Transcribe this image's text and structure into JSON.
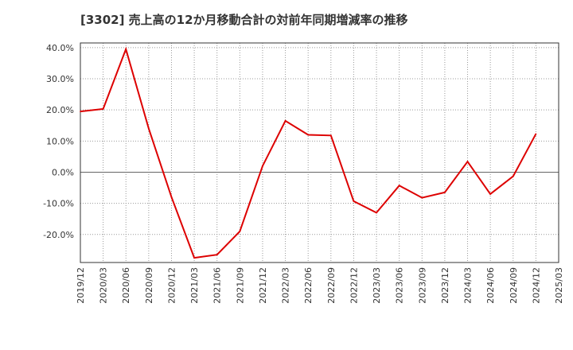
{
  "chart_data": {
    "type": "line",
    "title": "[3302]  売上高の12か月移動合計の対前年同期増減率の推移",
    "xlabel": "",
    "ylabel": "",
    "ylim": [
      -29,
      41.5
    ],
    "yticks": [
      40,
      30,
      20,
      10,
      0,
      -10,
      -20
    ],
    "ytick_labels": [
      "40.0%",
      "30.0%",
      "20.0%",
      "10.0%",
      "0.0%",
      "-10.0%",
      "-20.0%"
    ],
    "x_ticks": [
      "2019/12",
      "2020/03",
      "2020/06",
      "2020/09",
      "2020/12",
      "2021/03",
      "2021/06",
      "2021/09",
      "2021/12",
      "2022/03",
      "2022/06",
      "2022/09",
      "2022/12",
      "2023/03",
      "2023/06",
      "2023/09",
      "2023/12",
      "2024/03",
      "2024/06",
      "2024/09",
      "2024/12",
      "2025/03"
    ],
    "series": [
      {
        "name": "増減率",
        "color": "#dd0000",
        "x": [
          "2019/12",
          "2020/03",
          "2020/06",
          "2020/09",
          "2020/12",
          "2021/03",
          "2021/06",
          "2021/09",
          "2021/12",
          "2022/03",
          "2022/06",
          "2022/09",
          "2022/12",
          "2023/03",
          "2023/06",
          "2023/09",
          "2023/12",
          "2024/03",
          "2024/06",
          "2024/09",
          "2024/12"
        ],
        "values": [
          19.5,
          20.3,
          39.5,
          14.0,
          -8.0,
          -27.5,
          -26.5,
          -19.0,
          2.0,
          16.5,
          12.0,
          11.8,
          -9.3,
          -13.0,
          -4.3,
          -8.2,
          -6.5,
          3.4,
          -7.0,
          -1.3,
          12.3
        ]
      }
    ],
    "grid": true,
    "legend": "none"
  }
}
